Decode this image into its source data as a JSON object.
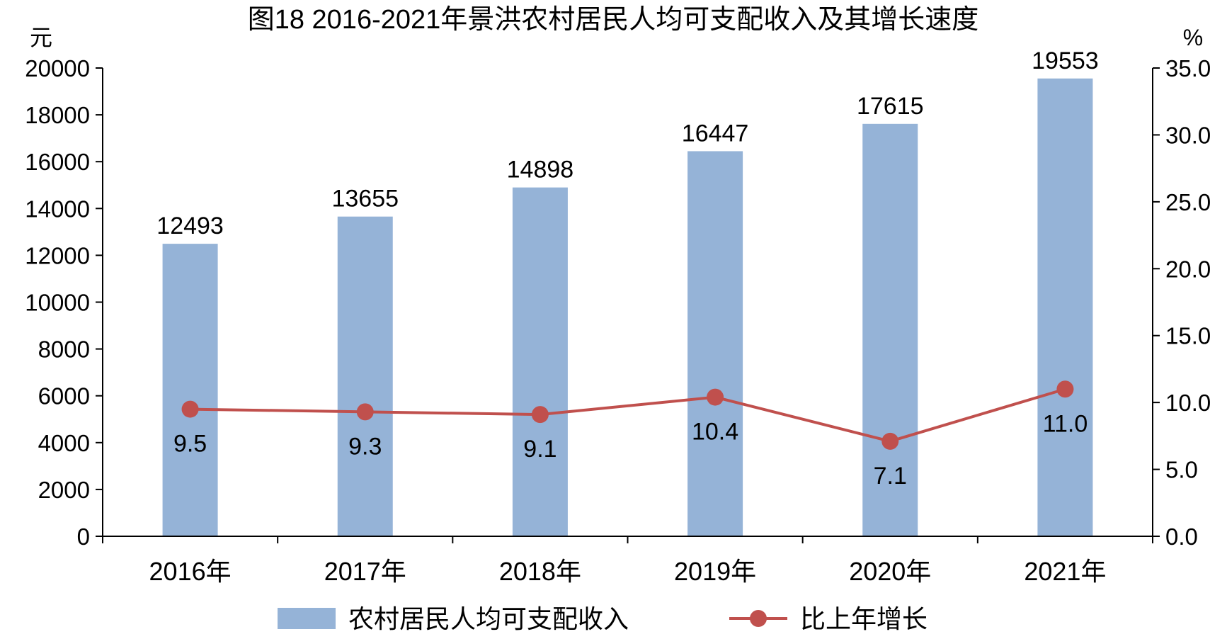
{
  "chart_data": {
    "title": "图18  2016-2021年景洪农村居民人均可支配收入及其增长速度",
    "categories": [
      "2016年",
      "2017年",
      "2018年",
      "2019年",
      "2020年",
      "2021年"
    ],
    "series": [
      {
        "name": "农村居民人均可支配收入",
        "type": "bar",
        "axis": "left",
        "color": "#95B3D7",
        "values": [
          12493,
          13655,
          14898,
          16447,
          17615,
          19553
        ],
        "labels": [
          "12493",
          "13655",
          "14898",
          "16447",
          "17615",
          "19553"
        ]
      },
      {
        "name": "比上年增长",
        "type": "line",
        "axis": "right",
        "color": "#C0504D",
        "values": [
          9.5,
          9.3,
          9.1,
          10.4,
          7.1,
          11.0
        ],
        "labels": [
          "9.5",
          "9.3",
          "9.1",
          "10.4",
          "7.1",
          "11.0"
        ]
      }
    ],
    "y_left": {
      "unit": "元",
      "ylim": [
        0,
        20000
      ],
      "ticks": [
        "0",
        "2000",
        "4000",
        "6000",
        "8000",
        "10000",
        "12000",
        "14000",
        "16000",
        "18000",
        "20000"
      ]
    },
    "y_right": {
      "unit": "%",
      "ylim": [
        0,
        35
      ],
      "ticks": [
        "0.0",
        "5.0",
        "10.0",
        "15.0",
        "20.0",
        "25.0",
        "30.0",
        "35.0"
      ]
    },
    "grid": false,
    "legend_position": "bottom"
  }
}
